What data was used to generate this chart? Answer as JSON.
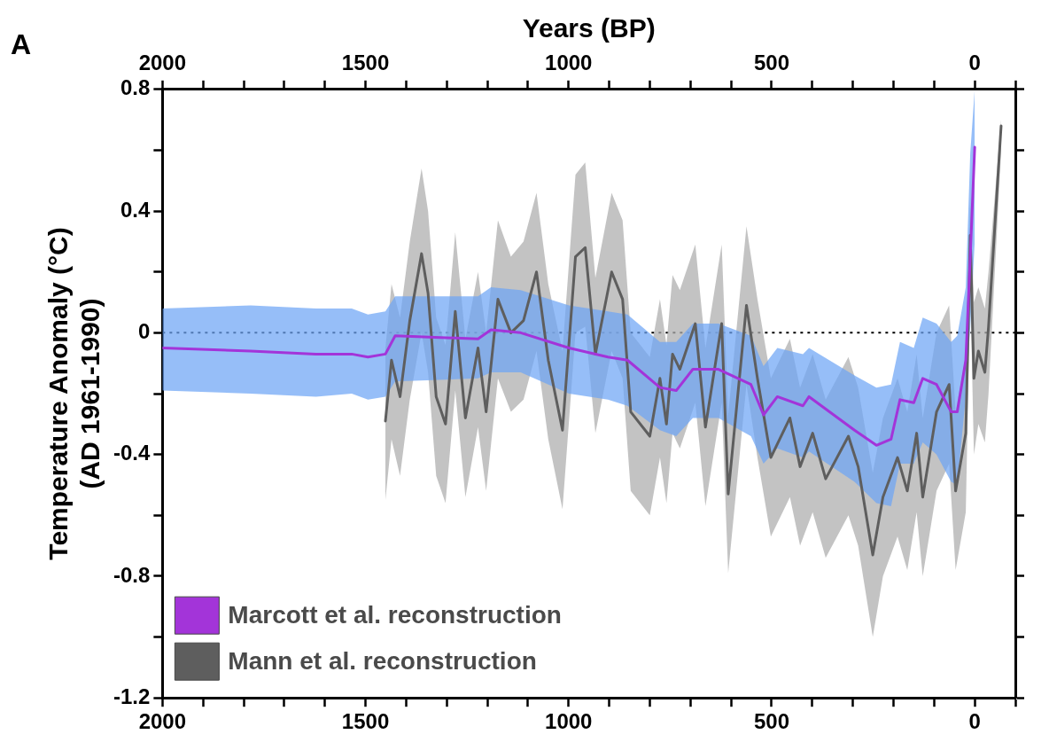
{
  "chart_data": {
    "type": "line",
    "x2label": "Years (BP)",
    "ylabel": "Temperature Anomaly (°C)\n(AD 1961-1990)",
    "annotations": [
      "A"
    ],
    "xlim": [
      2000,
      -100
    ],
    "xticks": [
      2000,
      {
        "value": 1900,
        "label": null
      },
      {
        "value": 1800,
        "label": null
      },
      {
        "value": 1700,
        "label": null
      },
      {
        "value": 1600,
        "label": null
      },
      1500,
      {
        "value": 1400,
        "label": null
      },
      {
        "value": 1300,
        "label": null
      },
      {
        "value": 1200,
        "label": null
      },
      {
        "value": 1100,
        "label": null
      },
      1000,
      {
        "value": 900,
        "label": null
      },
      {
        "value": 800,
        "label": null
      },
      {
        "value": 700,
        "label": null
      },
      {
        "value": 600,
        "label": null
      },
      500,
      {
        "value": 400,
        "label": null
      },
      {
        "value": 300,
        "label": null
      },
      {
        "value": 200,
        "label": null
      },
      {
        "value": 100,
        "label": null
      },
      0,
      {
        "value": -100,
        "label": null
      }
    ],
    "x2lim": [
      2000,
      -100
    ],
    "x2ticks": [
      2000,
      {
        "value": 1900,
        "label": null
      },
      {
        "value": 1800,
        "label": null
      },
      {
        "value": 1700,
        "label": null
      },
      {
        "value": 1600,
        "label": null
      },
      1500,
      {
        "value": 1400,
        "label": null
      },
      {
        "value": 1300,
        "label": null
      },
      {
        "value": 1200,
        "label": null
      },
      {
        "value": 1100,
        "label": null
      },
      1000,
      {
        "value": 900,
        "label": null
      },
      {
        "value": 800,
        "label": null
      },
      {
        "value": 700,
        "label": null
      },
      {
        "value": 600,
        "label": null
      },
      500,
      {
        "value": 400,
        "label": null
      },
      {
        "value": 300,
        "label": null
      },
      {
        "value": 200,
        "label": null
      },
      {
        "value": 100,
        "label": null
      },
      0,
      {
        "value": -100,
        "label": null
      }
    ],
    "ylim": [
      -1.2,
      0.8
    ],
    "yticks": [
      -1.2,
      {
        "value": -1.0,
        "label": null
      },
      -0.8,
      {
        "value": -0.6,
        "label": null
      },
      -0.4,
      {
        "value": -0.2,
        "label": null
      },
      0,
      {
        "value": 0.2,
        "label": null
      },
      0.4,
      {
        "value": 0.6,
        "label": null
      },
      0.8
    ],
    "grid": false,
    "legend": "bottom left",
    "marker": "none",
    "ref_lines": [
      {
        "axis": "y",
        "value": 0,
        "line_style": "dotted",
        "color": "#000000"
      }
    ],
    "series": [
      {
        "name": "Marcott et al. reconstruction",
        "color": "#a334d9",
        "x": [
          2000,
          1783,
          1622,
          1534,
          1494,
          1451,
          1427,
          1223,
          1191,
          1118,
          999,
          903,
          855,
          775,
          735,
          694,
          631,
          551,
          520,
          486,
          423,
          408,
          296,
          242,
          206,
          184,
          150,
          128,
          94,
          58,
          43,
          22,
          11,
          0
        ],
        "values": [
          -0.05,
          -0.06,
          -0.07,
          -0.07,
          -0.08,
          -0.07,
          -0.01,
          -0.02,
          0.01,
          0,
          -0.05,
          -0.08,
          -0.09,
          -0.18,
          -0.19,
          -0.12,
          -0.12,
          -0.17,
          -0.27,
          -0.21,
          -0.24,
          -0.21,
          -0.32,
          -0.37,
          -0.35,
          -0.22,
          -0.23,
          -0.15,
          -0.17,
          -0.26,
          -0.26,
          -0.09,
          0.25,
          0.61
        ],
        "upper": [
          0.08,
          0.09,
          0.08,
          0.08,
          0.06,
          0.07,
          0.12,
          0.12,
          0.15,
          0.14,
          0.09,
          0.07,
          0.06,
          -0.03,
          -0.03,
          0.03,
          0.03,
          -0.01,
          -0.11,
          -0.05,
          -0.07,
          -0.05,
          -0.14,
          -0.18,
          -0.17,
          -0.03,
          -0.05,
          0.05,
          0.03,
          -0.03,
          -0.01,
          0.15,
          0.59,
          0.8
        ],
        "lower": [
          -0.19,
          -0.2,
          -0.21,
          -0.2,
          -0.22,
          -0.21,
          -0.16,
          -0.15,
          -0.13,
          -0.13,
          -0.2,
          -0.22,
          -0.24,
          -0.32,
          -0.34,
          -0.28,
          -0.28,
          -0.34,
          -0.43,
          -0.38,
          -0.41,
          -0.39,
          -0.49,
          -0.56,
          -0.57,
          -0.43,
          -0.43,
          -0.36,
          -0.4,
          -0.49,
          -0.5,
          -0.21,
          0.02,
          0.3
        ]
      },
      {
        "name": "Mann et al. reconstruction",
        "color": "#5e5e5e",
        "x": [
          1451,
          1436,
          1415,
          1391,
          1362,
          1346,
          1326,
          1303,
          1279,
          1254,
          1223,
          1203,
          1174,
          1142,
          1111,
          1079,
          1050,
          1015,
          983,
          959,
          934,
          894,
          867,
          847,
          800,
          775,
          759,
          744,
          726,
          688,
          663,
          623,
          607,
          562,
          535,
          502,
          455,
          430,
          399,
          367,
          311,
          287,
          251,
          226,
          190,
          166,
          143,
          128,
          94,
          63,
          47,
          22,
          11,
          2,
          -9,
          -25,
          -34,
          -65
        ],
        "values": [
          -0.29,
          -0.09,
          -0.21,
          0.04,
          0.26,
          0.13,
          -0.21,
          -0.3,
          0.07,
          -0.28,
          -0.05,
          -0.26,
          0.11,
          0,
          0.04,
          0.2,
          -0.09,
          -0.32,
          0.25,
          0.28,
          -0.07,
          0.2,
          0.11,
          -0.26,
          -0.34,
          -0.15,
          -0.3,
          -0.07,
          -0.12,
          0.03,
          -0.31,
          0.03,
          -0.53,
          0.09,
          -0.15,
          -0.41,
          -0.28,
          -0.44,
          -0.33,
          -0.48,
          -0.34,
          -0.44,
          -0.73,
          -0.54,
          -0.41,
          -0.52,
          -0.33,
          -0.54,
          -0.26,
          -0.17,
          -0.52,
          -0.33,
          0.32,
          -0.15,
          -0.06,
          -0.13,
          0.02,
          0.68
        ],
        "upper": [
          -0.05,
          0.16,
          0.05,
          0.3,
          0.54,
          0.4,
          0.05,
          -0.04,
          0.33,
          -0.02,
          0.2,
          0,
          0.37,
          0.25,
          0.3,
          0.46,
          0.16,
          -0.06,
          0.52,
          0.56,
          0.18,
          0.46,
          0.37,
          0,
          -0.08,
          0.11,
          -0.04,
          0.19,
          0.14,
          0.29,
          -0.05,
          0.29,
          -0.27,
          0.35,
          0.11,
          -0.15,
          -0.02,
          -0.18,
          -0.07,
          -0.22,
          -0.08,
          -0.18,
          -0.46,
          -0.28,
          -0.15,
          -0.26,
          -0.07,
          -0.28,
          0,
          0.09,
          -0.26,
          -0.07,
          0.45,
          0.1,
          0.15,
          0.08,
          0.2,
          0.7
        ],
        "lower": [
          -0.55,
          -0.35,
          -0.47,
          -0.22,
          0,
          -0.13,
          -0.47,
          -0.56,
          -0.19,
          -0.54,
          -0.31,
          -0.52,
          -0.15,
          -0.26,
          -0.22,
          -0.06,
          -0.35,
          -0.58,
          0,
          0.02,
          -0.33,
          -0.06,
          -0.15,
          -0.52,
          -0.6,
          -0.41,
          -0.56,
          -0.33,
          -0.38,
          -0.23,
          -0.57,
          -0.23,
          -0.79,
          -0.17,
          -0.41,
          -0.67,
          -0.54,
          -0.7,
          -0.59,
          -0.74,
          -0.6,
          -0.7,
          -1,
          -0.8,
          -0.67,
          -0.78,
          -0.59,
          -0.8,
          -0.52,
          -0.43,
          -0.78,
          -0.59,
          0.15,
          -0.4,
          -0.3,
          -0.36,
          -0.2,
          0.6
        ]
      }
    ]
  }
}
